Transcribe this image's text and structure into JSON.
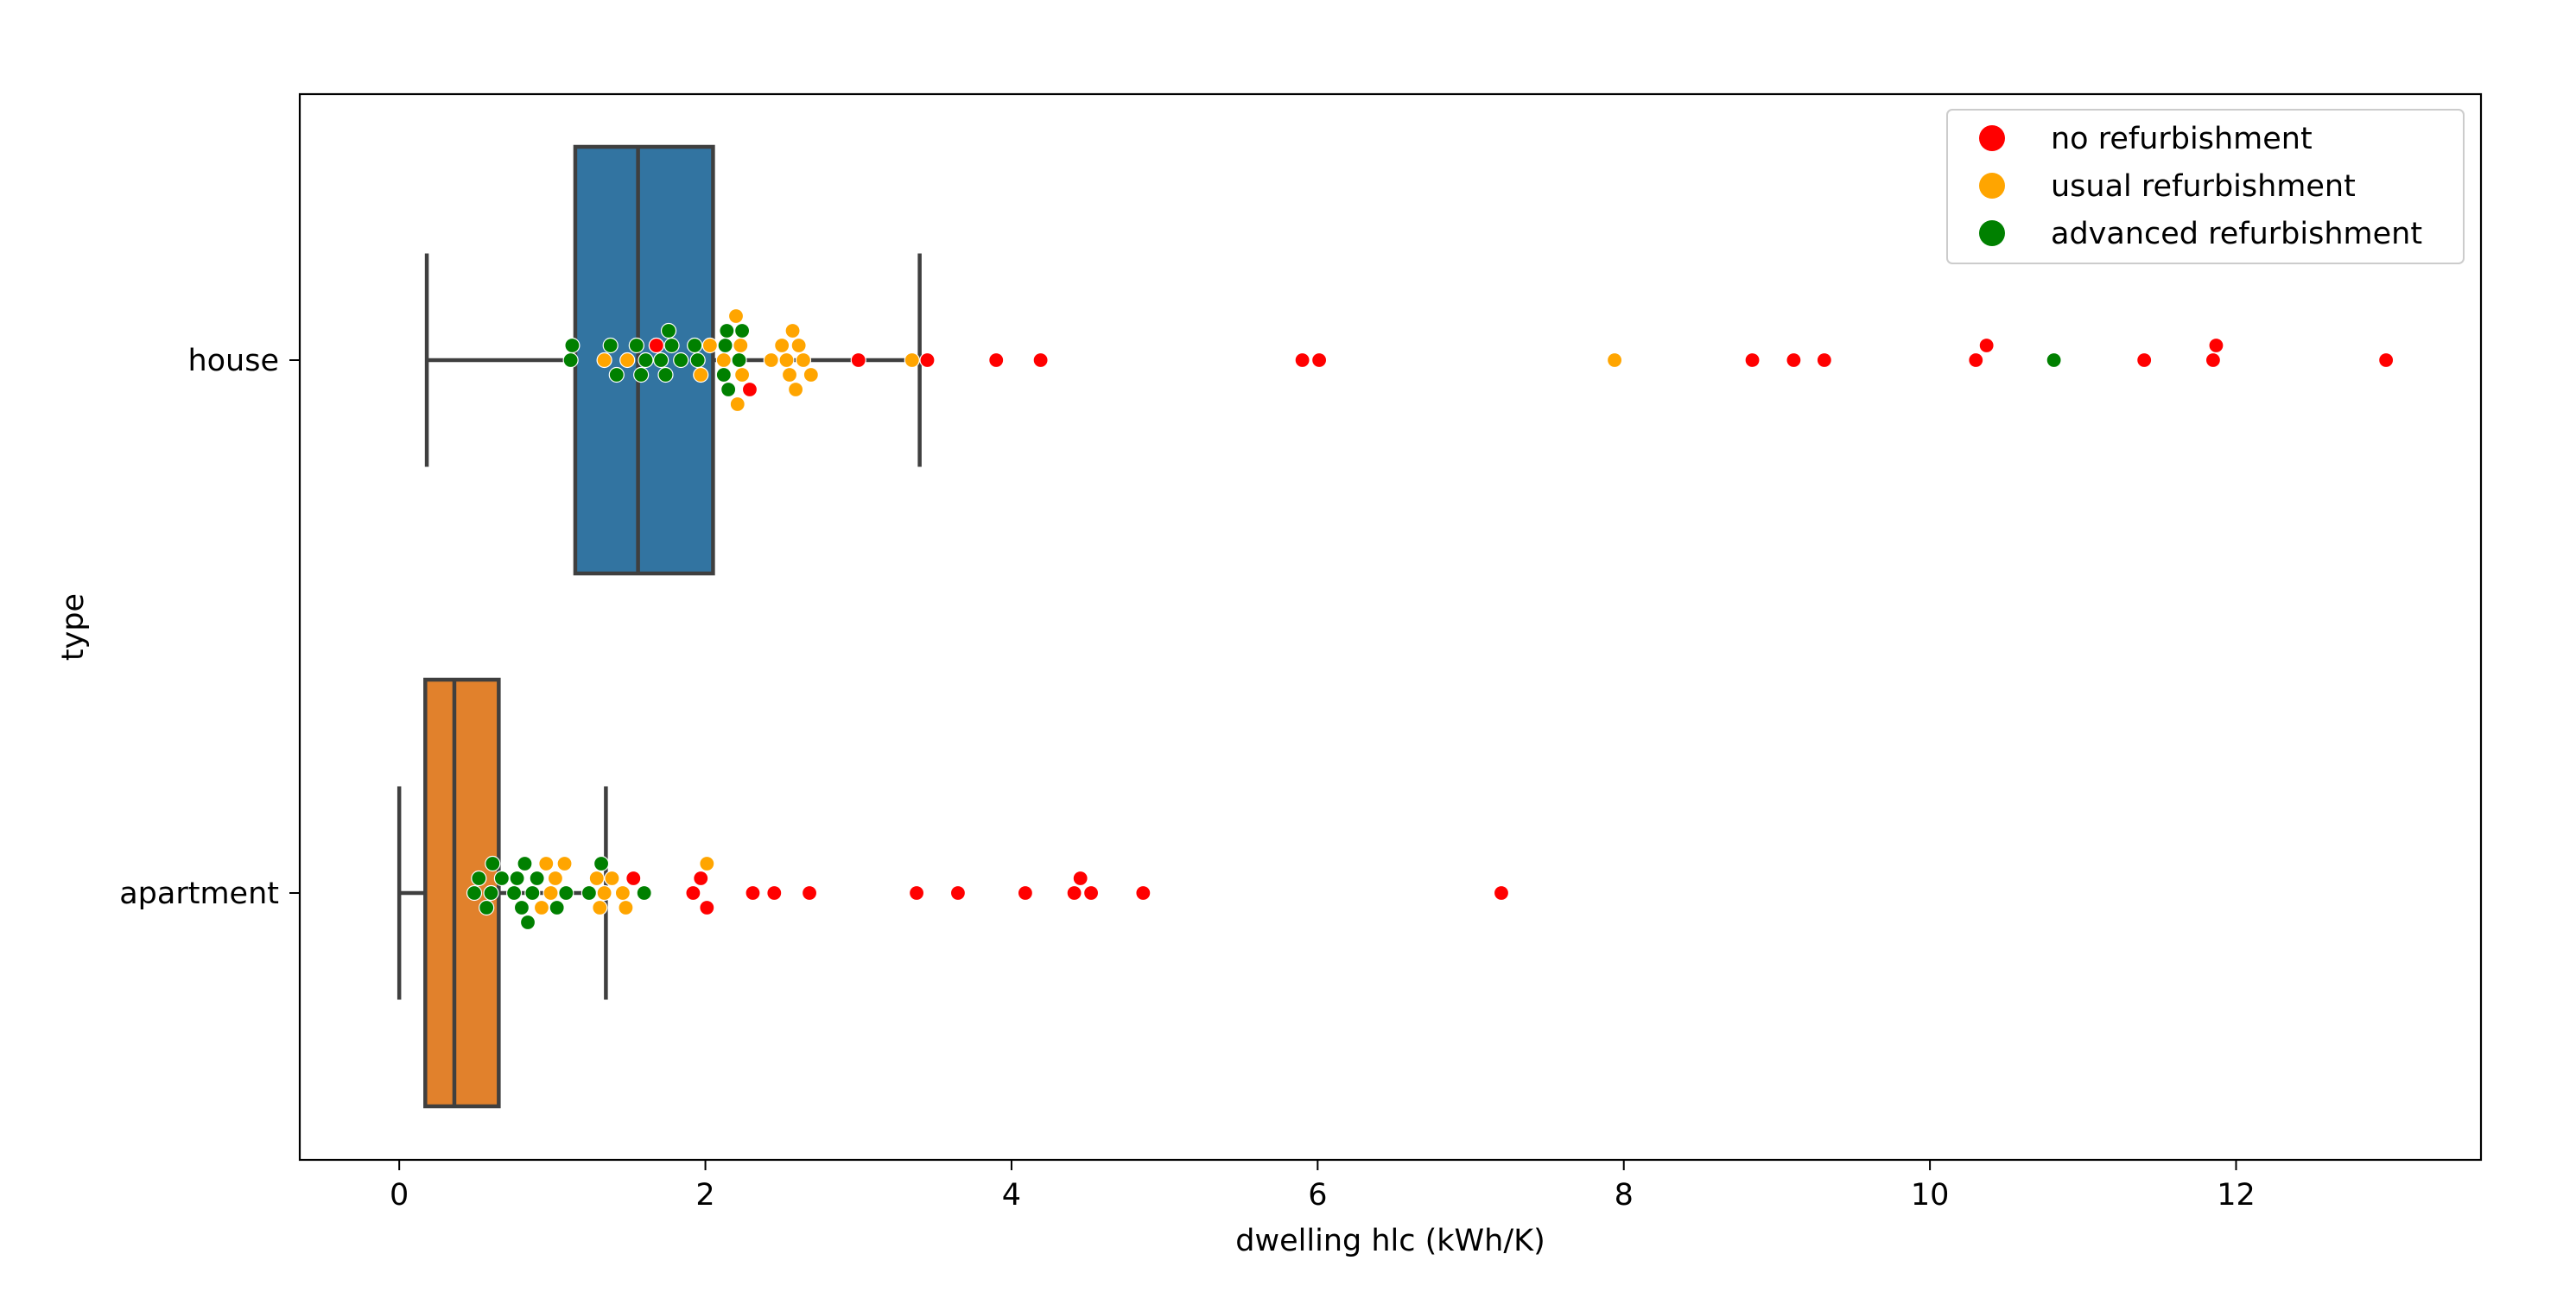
{
  "chart_data": {
    "type": "box",
    "orientation": "horizontal",
    "xlabel": "dwelling hlc (kWh/K)",
    "ylabel": "type",
    "xlim": [
      -0.65,
      13.6
    ],
    "xticks": [
      0,
      2,
      4,
      6,
      8,
      10,
      12
    ],
    "grid": false,
    "legend_position": "top-right",
    "categories": [
      "house",
      "apartment"
    ],
    "boxes": [
      {
        "category": "house",
        "color": "#3274a1",
        "whisker_low": 0.18,
        "q1": 1.15,
        "median": 1.56,
        "q3": 2.05,
        "whisker_high": 3.4
      },
      {
        "category": "apartment",
        "color": "#e1812c",
        "whisker_low": 0.0,
        "q1": 0.17,
        "median": 0.36,
        "q3": 0.65,
        "whisker_high": 1.35
      }
    ],
    "series": [
      {
        "name": "no refurbishment",
        "color": "#ff0000",
        "points": [
          {
            "cat": "house",
            "x": 2.29
          },
          {
            "cat": "house",
            "x": 3.0
          },
          {
            "cat": "house",
            "x": 3.45
          },
          {
            "cat": "house",
            "x": 3.9
          },
          {
            "cat": "house",
            "x": 4.19
          },
          {
            "cat": "house",
            "x": 5.9
          },
          {
            "cat": "house",
            "x": 6.01
          },
          {
            "cat": "house",
            "x": 8.84
          },
          {
            "cat": "house",
            "x": 9.11
          },
          {
            "cat": "house",
            "x": 9.31
          },
          {
            "cat": "house",
            "x": 10.3
          },
          {
            "cat": "house",
            "x": 10.37
          },
          {
            "cat": "house",
            "x": 11.4
          },
          {
            "cat": "house",
            "x": 11.85
          },
          {
            "cat": "house",
            "x": 11.87
          },
          {
            "cat": "house",
            "x": 12.98
          },
          {
            "cat": "house",
            "x": 1.68
          },
          {
            "cat": "apartment",
            "x": 1.53
          },
          {
            "cat": "apartment",
            "x": 1.92
          },
          {
            "cat": "apartment",
            "x": 1.97
          },
          {
            "cat": "apartment",
            "x": 2.01
          },
          {
            "cat": "apartment",
            "x": 2.31
          },
          {
            "cat": "apartment",
            "x": 2.45
          },
          {
            "cat": "apartment",
            "x": 2.68
          },
          {
            "cat": "apartment",
            "x": 3.38
          },
          {
            "cat": "apartment",
            "x": 3.65
          },
          {
            "cat": "apartment",
            "x": 4.09
          },
          {
            "cat": "apartment",
            "x": 4.41
          },
          {
            "cat": "apartment",
            "x": 4.45
          },
          {
            "cat": "apartment",
            "x": 4.52
          },
          {
            "cat": "apartment",
            "x": 4.86
          },
          {
            "cat": "apartment",
            "x": 7.2
          }
        ]
      },
      {
        "name": "usual refurbishment",
        "color": "#ffa500",
        "points": [
          {
            "cat": "house",
            "x": 1.34
          },
          {
            "cat": "house",
            "x": 1.49
          },
          {
            "cat": "house",
            "x": 1.97
          },
          {
            "cat": "house",
            "x": 2.03
          },
          {
            "cat": "house",
            "x": 2.12
          },
          {
            "cat": "house",
            "x": 2.2
          },
          {
            "cat": "house",
            "x": 2.21
          },
          {
            "cat": "house",
            "x": 2.23
          },
          {
            "cat": "house",
            "x": 2.24
          },
          {
            "cat": "house",
            "x": 2.43
          },
          {
            "cat": "house",
            "x": 2.5
          },
          {
            "cat": "house",
            "x": 2.53
          },
          {
            "cat": "house",
            "x": 2.55
          },
          {
            "cat": "house",
            "x": 2.57
          },
          {
            "cat": "house",
            "x": 2.59
          },
          {
            "cat": "house",
            "x": 2.61
          },
          {
            "cat": "house",
            "x": 2.64
          },
          {
            "cat": "house",
            "x": 2.69
          },
          {
            "cat": "house",
            "x": 3.35
          },
          {
            "cat": "house",
            "x": 7.94
          },
          {
            "cat": "apartment",
            "x": 0.93
          },
          {
            "cat": "apartment",
            "x": 0.96
          },
          {
            "cat": "apartment",
            "x": 0.99
          },
          {
            "cat": "apartment",
            "x": 1.02
          },
          {
            "cat": "apartment",
            "x": 1.08
          },
          {
            "cat": "apartment",
            "x": 1.29
          },
          {
            "cat": "apartment",
            "x": 1.31
          },
          {
            "cat": "apartment",
            "x": 1.34
          },
          {
            "cat": "apartment",
            "x": 1.39
          },
          {
            "cat": "apartment",
            "x": 1.46
          },
          {
            "cat": "apartment",
            "x": 1.48
          },
          {
            "cat": "apartment",
            "x": 2.01
          }
        ]
      },
      {
        "name": "advanced refurbishment",
        "color": "#008000",
        "points": [
          {
            "cat": "house",
            "x": 1.12
          },
          {
            "cat": "house",
            "x": 1.13
          },
          {
            "cat": "house",
            "x": 1.38
          },
          {
            "cat": "house",
            "x": 1.42
          },
          {
            "cat": "house",
            "x": 1.55
          },
          {
            "cat": "house",
            "x": 1.58
          },
          {
            "cat": "house",
            "x": 1.61
          },
          {
            "cat": "house",
            "x": 1.71
          },
          {
            "cat": "house",
            "x": 1.74
          },
          {
            "cat": "house",
            "x": 1.76
          },
          {
            "cat": "house",
            "x": 1.78
          },
          {
            "cat": "house",
            "x": 1.84
          },
          {
            "cat": "house",
            "x": 1.93
          },
          {
            "cat": "house",
            "x": 1.95
          },
          {
            "cat": "house",
            "x": 2.12
          },
          {
            "cat": "house",
            "x": 2.13
          },
          {
            "cat": "house",
            "x": 2.14
          },
          {
            "cat": "house",
            "x": 2.15
          },
          {
            "cat": "house",
            "x": 2.22
          },
          {
            "cat": "house",
            "x": 2.24
          },
          {
            "cat": "house",
            "x": 10.81
          },
          {
            "cat": "apartment",
            "x": 0.49
          },
          {
            "cat": "apartment",
            "x": 0.52
          },
          {
            "cat": "apartment",
            "x": 0.57
          },
          {
            "cat": "apartment",
            "x": 0.6
          },
          {
            "cat": "apartment",
            "x": 0.61
          },
          {
            "cat": "apartment",
            "x": 0.67
          },
          {
            "cat": "apartment",
            "x": 0.75
          },
          {
            "cat": "apartment",
            "x": 0.77
          },
          {
            "cat": "apartment",
            "x": 0.8
          },
          {
            "cat": "apartment",
            "x": 0.82
          },
          {
            "cat": "apartment",
            "x": 0.84
          },
          {
            "cat": "apartment",
            "x": 0.87
          },
          {
            "cat": "apartment",
            "x": 0.9
          },
          {
            "cat": "apartment",
            "x": 1.03
          },
          {
            "cat": "apartment",
            "x": 1.09
          },
          {
            "cat": "apartment",
            "x": 1.24
          },
          {
            "cat": "apartment",
            "x": 1.32
          },
          {
            "cat": "apartment",
            "x": 1.6
          }
        ]
      }
    ]
  }
}
